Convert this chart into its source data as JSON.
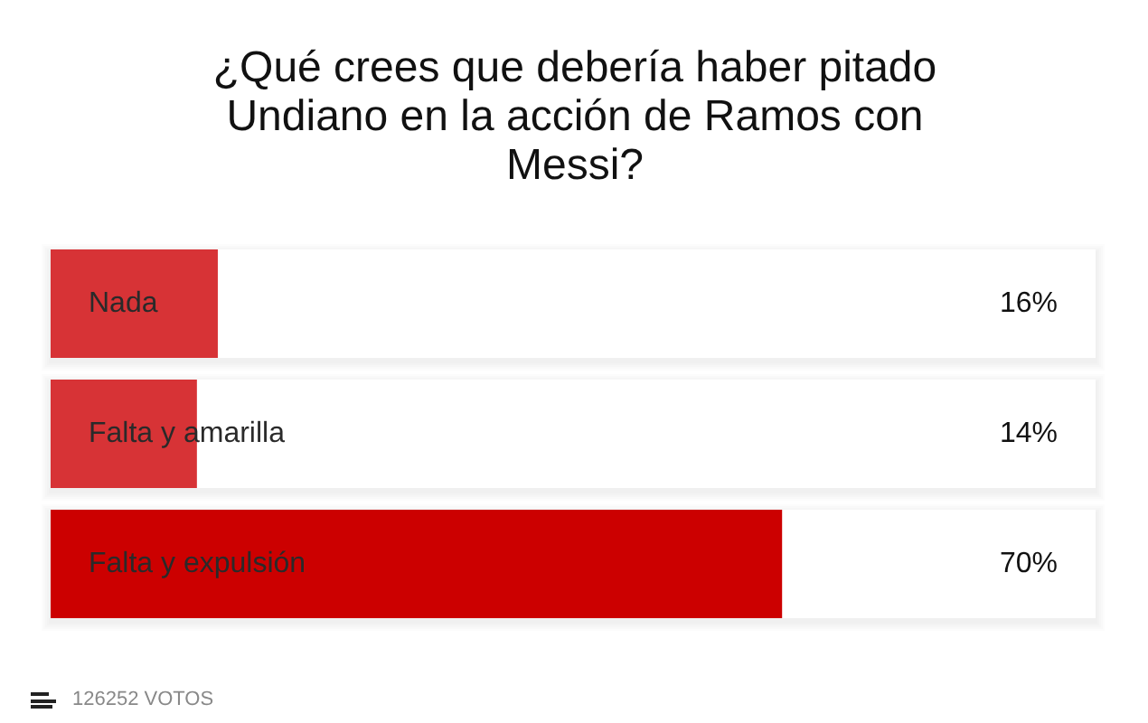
{
  "chart_data": {
    "type": "bar",
    "title": "¿Qué crees que debería haber pitado Undiano en la acción de Ramos con Messi?",
    "orientation": "horizontal",
    "categories": [
      "Nada",
      "Falta y amarilla",
      "Falta y expulsión"
    ],
    "values": [
      16,
      14,
      70
    ],
    "colors": [
      "#d73336",
      "#d73336",
      "#cc0000"
    ],
    "xlim": [
      0,
      100
    ],
    "value_labels": [
      "16%",
      "14%",
      "70%"
    ],
    "tick_labels": "y",
    "annotations": [
      "126252 VOTOS"
    ]
  }
}
